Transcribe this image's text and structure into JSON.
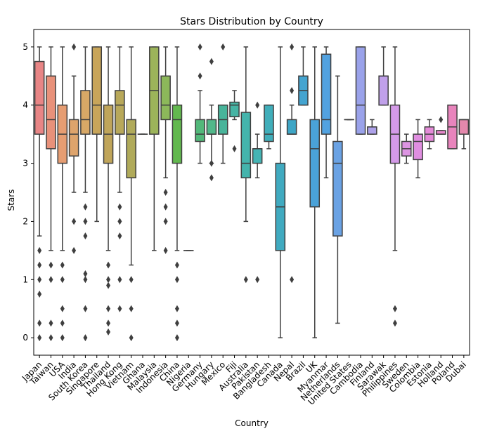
{
  "chart_data": {
    "type": "box",
    "title": "Stars Distribution by Country",
    "xlabel": "Country",
    "ylabel": "Stars",
    "ylim": [
      -0.3,
      5.3
    ],
    "yticks": [
      0,
      1,
      2,
      3,
      4,
      5
    ],
    "grid": false,
    "categories": [
      "Japan",
      "Taiwan",
      "USA",
      "India",
      "South Korea",
      "Singapore",
      "Thailand",
      "Hong Kong",
      "Vietnam",
      "Ghana",
      "Malaysia",
      "Indonesia",
      "China",
      "Nigeria",
      "Germany",
      "Hungary",
      "Mexico",
      "Fiji",
      "Australia",
      "Pakistan",
      "Bangladesh",
      "Canada",
      "Nepal",
      "Brazil",
      "UK",
      "Myanmar",
      "Netherlands",
      "United States",
      "Cambodia",
      "Finland",
      "Sarawak",
      "Philippines",
      "Sweden",
      "Colombia",
      "Estonia",
      "Holland",
      "Poland",
      "Dubai"
    ],
    "colors": [
      "#e88585",
      "#e8917a",
      "#e69d72",
      "#dea46c",
      "#d8a866",
      "#c8a55a",
      "#c0a55a",
      "#b8a85a",
      "#b0aa5a",
      "#a5ae5a",
      "#9cb45a",
      "#8cb85a",
      "#62b84e",
      "#4cb86a",
      "#52b87a",
      "#52b88a",
      "#48b49a",
      "#46b4a4",
      "#44b4ac",
      "#44b4b4",
      "#40aeba",
      "#40aac0",
      "#3ea6c6",
      "#44a4d0",
      "#4aa2d8",
      "#52a2e0",
      "#6aa2e4",
      "#86a4e8",
      "#9aa2ea",
      "#aea2ea",
      "#c0a0ea",
      "#d49ae8",
      "#dc94e2",
      "#e08ee0",
      "#e48ad8",
      "#e888cc",
      "#e884bc",
      "#e488ac"
    ],
    "boxes": [
      {
        "q1": 3.5,
        "median": 4.0,
        "q3": 4.75,
        "whisker_low": 1.75,
        "whisker_high": 5.0,
        "outliers": [
          1.5,
          1.25,
          1.0,
          0.75,
          0.25,
          0.0
        ]
      },
      {
        "q1": 3.25,
        "median": 3.75,
        "q3": 4.5,
        "whisker_low": 1.5,
        "whisker_high": 5.0,
        "outliers": [
          1.25,
          1.0,
          0.25,
          0.0
        ]
      },
      {
        "q1": 3.0,
        "median": 3.5,
        "q3": 4.0,
        "whisker_low": 1.5,
        "whisker_high": 5.0,
        "outliers": [
          1.25,
          1.0,
          0.5,
          0.25,
          0.0
        ]
      },
      {
        "q1": 3.125,
        "median": 3.5,
        "q3": 3.75,
        "whisker_low": 2.5,
        "whisker_high": 4.5,
        "outliers": [
          5.0,
          2.0,
          1.5
        ]
      },
      {
        "q1": 3.5,
        "median": 3.75,
        "q3": 4.25,
        "whisker_low": 2.5,
        "whisker_high": 5.0,
        "outliers": [
          2.25,
          2.0,
          1.75,
          1.1,
          1.0,
          0.5,
          0.0
        ]
      },
      {
        "q1": 3.5,
        "median": 4.0,
        "q3": 5.0,
        "whisker_low": 2.0,
        "whisker_high": 5.0,
        "outliers": []
      },
      {
        "q1": 3.0,
        "median": 3.5,
        "q3": 4.0,
        "whisker_low": 1.5,
        "whisker_high": 5.0,
        "outliers": [
          1.25,
          1.0,
          0.9,
          0.5,
          0.25,
          0.1
        ]
      },
      {
        "q1": 3.5,
        "median": 4.0,
        "q3": 4.25,
        "whisker_low": 2.5,
        "whisker_high": 5.0,
        "outliers": [
          2.25,
          2.0,
          1.75,
          1.0,
          0.5
        ]
      },
      {
        "q1": 2.75,
        "median": 3.5,
        "q3": 3.75,
        "whisker_low": 1.25,
        "whisker_high": 5.0,
        "outliers": [
          1.0,
          0.5,
          0.0
        ]
      },
      {
        "q1": 3.5,
        "median": 3.5,
        "q3": 3.5,
        "whisker_low": 3.5,
        "whisker_high": 3.5,
        "outliers": []
      },
      {
        "q1": 3.5,
        "median": 4.25,
        "q3": 5.0,
        "whisker_low": 1.5,
        "whisker_high": 5.0,
        "outliers": []
      },
      {
        "q1": 3.75,
        "median": 4.0,
        "q3": 4.5,
        "whisker_low": 2.75,
        "whisker_high": 5.0,
        "outliers": [
          2.5,
          2.25,
          2.0,
          1.5
        ]
      },
      {
        "q1": 3.0,
        "median": 3.75,
        "q3": 4.0,
        "whisker_low": 1.5,
        "whisker_high": 5.0,
        "outliers": [
          1.25,
          1.0,
          0.5,
          0.25,
          0.0
        ]
      },
      {
        "q1": 1.5,
        "median": 1.5,
        "q3": 1.5,
        "whisker_low": 1.5,
        "whisker_high": 1.5,
        "outliers": []
      },
      {
        "q1": 3.375,
        "median": 3.5,
        "q3": 3.75,
        "whisker_low": 3.0,
        "whisker_high": 4.25,
        "outliers": [
          5.0,
          4.5
        ]
      },
      {
        "q1": 3.5,
        "median": 3.5,
        "q3": 3.75,
        "whisker_low": 3.0,
        "whisker_high": 4.0,
        "outliers": [
          4.75,
          3.0,
          2.75
        ]
      },
      {
        "q1": 3.5,
        "median": 3.75,
        "q3": 4.0,
        "whisker_low": 3.0,
        "whisker_high": 4.0,
        "outliers": [
          5.0
        ]
      },
      {
        "q1": 3.8,
        "median": 4.0,
        "q3": 4.05,
        "whisker_low": 3.75,
        "whisker_high": 4.25,
        "outliers": [
          3.25
        ]
      },
      {
        "q1": 2.75,
        "median": 3.0,
        "q3": 3.875,
        "whisker_low": 2.0,
        "whisker_high": 5.0,
        "outliers": [
          1.0
        ]
      },
      {
        "q1": 3.0,
        "median": 3.25,
        "q3": 3.25,
        "whisker_low": 2.75,
        "whisker_high": 3.5,
        "outliers": [
          4.0,
          1.0
        ]
      },
      {
        "q1": 3.375,
        "median": 3.5,
        "q3": 4.0,
        "whisker_low": 3.25,
        "whisker_high": 4.0,
        "outliers": []
      },
      {
        "q1": 1.5,
        "median": 2.25,
        "q3": 3.0,
        "whisker_low": 0.0,
        "whisker_high": 5.0,
        "outliers": []
      },
      {
        "q1": 3.5,
        "median": 3.5,
        "q3": 3.75,
        "whisker_low": 3.5,
        "whisker_high": 4.0,
        "outliers": [
          5.0,
          4.25,
          1.0
        ]
      },
      {
        "q1": 4.0,
        "median": 4.25,
        "q3": 4.5,
        "whisker_low": 4.0,
        "whisker_high": 5.0,
        "outliers": []
      },
      {
        "q1": 2.25,
        "median": 3.25,
        "q3": 3.75,
        "whisker_low": 0.0,
        "whisker_high": 5.0,
        "outliers": []
      },
      {
        "q1": 3.5,
        "median": 3.75,
        "q3": 4.875,
        "whisker_low": 2.75,
        "whisker_high": 5.0,
        "outliers": []
      },
      {
        "q1": 1.75,
        "median": 3.0,
        "q3": 3.375,
        "whisker_low": 0.25,
        "whisker_high": 4.5,
        "outliers": []
      },
      {
        "q1": 3.75,
        "median": 3.75,
        "q3": 3.75,
        "whisker_low": 3.75,
        "whisker_high": 3.75,
        "outliers": []
      },
      {
        "q1": 3.5,
        "median": 4.0,
        "q3": 5.0,
        "whisker_low": 3.5,
        "whisker_high": 5.0,
        "outliers": []
      },
      {
        "q1": 3.5,
        "median": 3.625,
        "q3": 3.625,
        "whisker_low": 3.5,
        "whisker_high": 3.75,
        "outliers": []
      },
      {
        "q1": 4.0,
        "median": 4.5,
        "q3": 4.5,
        "whisker_low": 4.0,
        "whisker_high": 5.0,
        "outliers": []
      },
      {
        "q1": 3.0,
        "median": 3.5,
        "q3": 4.0,
        "whisker_low": 1.5,
        "whisker_high": 5.0,
        "outliers": [
          0.5,
          0.25
        ]
      },
      {
        "q1": 3.125,
        "median": 3.25,
        "q3": 3.375,
        "whisker_low": 3.0,
        "whisker_high": 3.5,
        "outliers": []
      },
      {
        "q1": 3.0625,
        "median": 3.375,
        "q3": 3.5,
        "whisker_low": 2.75,
        "whisker_high": 3.75,
        "outliers": []
      },
      {
        "q1": 3.375,
        "median": 3.5,
        "q3": 3.625,
        "whisker_low": 3.25,
        "whisker_high": 3.75,
        "outliers": []
      },
      {
        "q1": 3.5,
        "median": 3.5,
        "q3": 3.5625,
        "whisker_low": 3.5,
        "whisker_high": 3.5625,
        "outliers": [
          3.75
        ]
      },
      {
        "q1": 3.25,
        "median": 3.625,
        "q3": 4.0,
        "whisker_low": 3.25,
        "whisker_high": 4.0,
        "outliers": []
      },
      {
        "q1": 3.5,
        "median": 3.75,
        "q3": 3.75,
        "whisker_low": 3.25,
        "whisker_high": 3.75,
        "outliers": []
      }
    ]
  }
}
